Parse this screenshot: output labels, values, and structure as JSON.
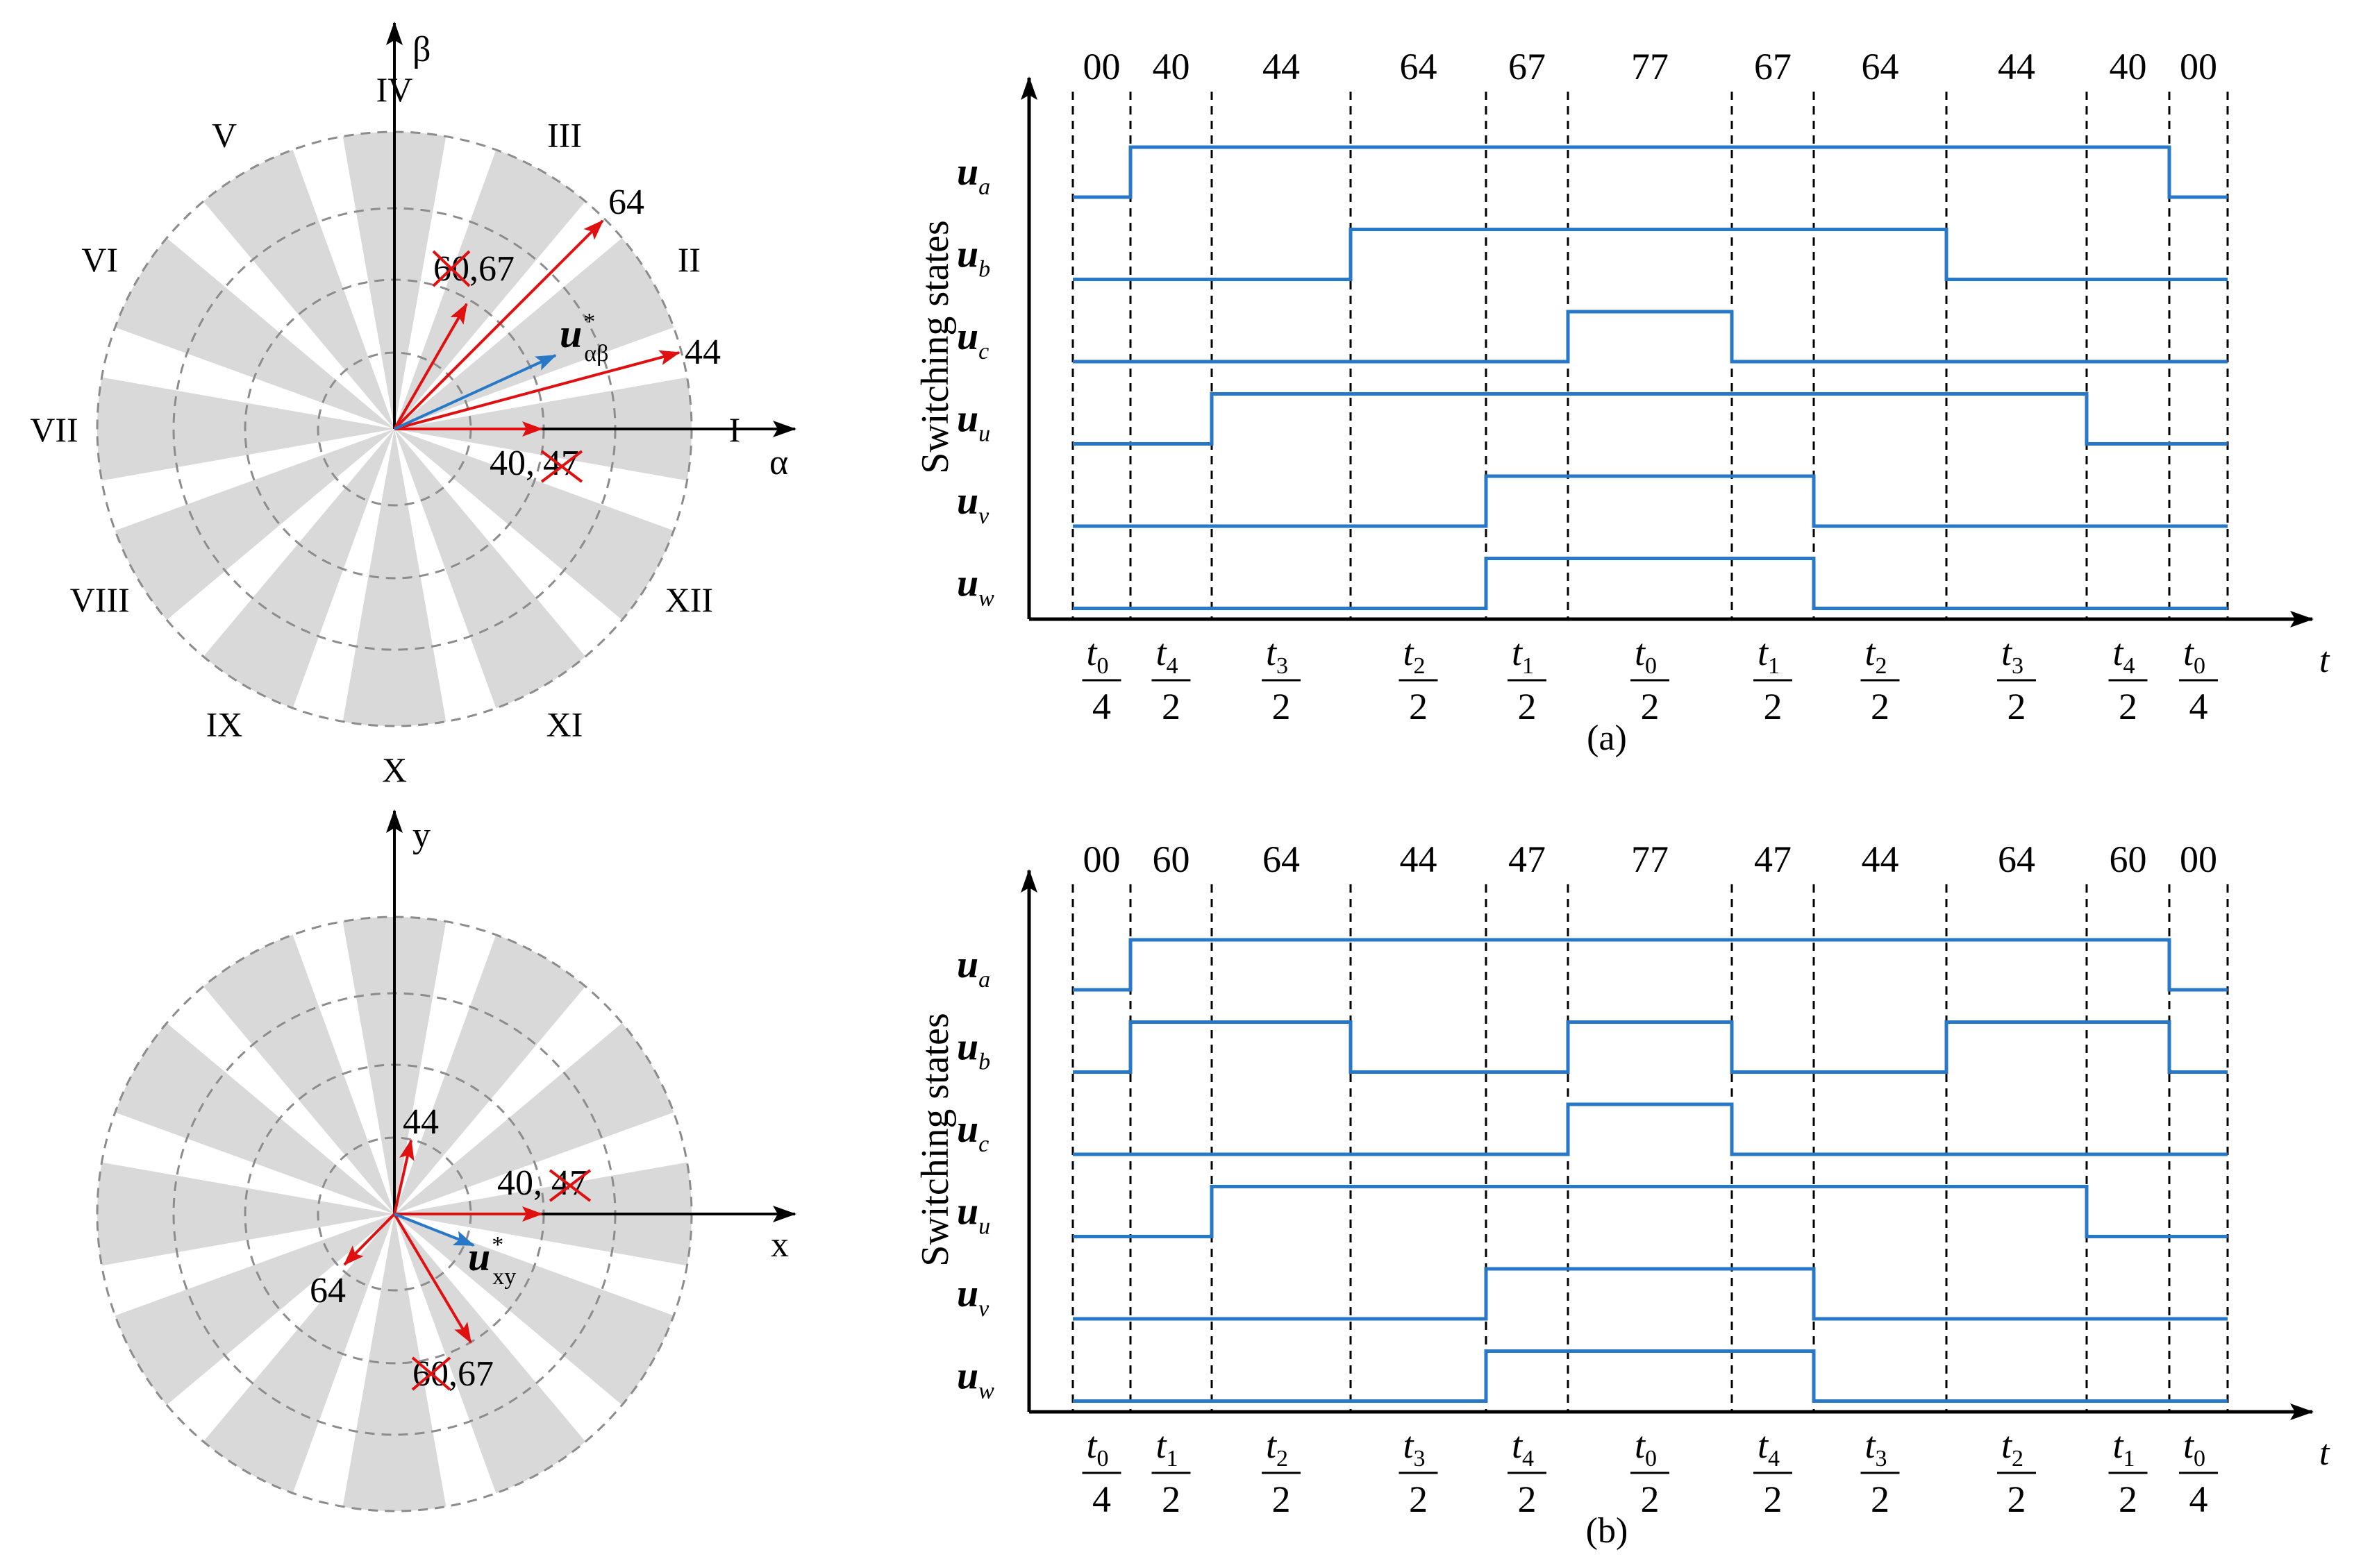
{
  "colors": {
    "blue": "#2878c8",
    "red": "#e01010",
    "gray_sector": "#d9d9d9",
    "dash_circle": "#8c8c8c",
    "black": "#000000"
  },
  "top_vector_diagram": {
    "axis_horizontal": "α",
    "axis_vertical": "β",
    "sectors": [
      "I",
      "II",
      "III",
      "IV",
      "V",
      "VI",
      "VII",
      "VIII",
      "IX",
      "X",
      "XI",
      "XII"
    ],
    "vector_labels": {
      "v64": "64",
      "v44": "44",
      "v6067_struck": "60",
      "v6067_rest": ",67",
      "v4047_first": "40,",
      "v4047_struck": "47"
    },
    "reference": {
      "main": "u",
      "sup": "*",
      "sub": "αβ"
    }
  },
  "bottom_vector_diagram": {
    "axis_horizontal": "x",
    "axis_vertical": "y",
    "vector_labels": {
      "v44": "44",
      "v64": "64",
      "v4047_first": "40,",
      "v4047_struck": "47",
      "v6067_struck": "60",
      "v6067_rest": ",67"
    },
    "reference": {
      "main": "u",
      "sup": "*",
      "sub": "xy"
    }
  },
  "timing_a": {
    "caption": "(a)",
    "ylabel": "Switching states",
    "xlabel": "t",
    "states": [
      "00",
      "40",
      "44",
      "64",
      "67",
      "77",
      "67",
      "64",
      "44",
      "40",
      "00"
    ],
    "rows": [
      {
        "main": "u",
        "sub": "a",
        "levels": [
          0,
          1,
          1,
          1,
          1,
          1,
          1,
          1,
          1,
          1,
          0
        ]
      },
      {
        "main": "u",
        "sub": "b",
        "levels": [
          0,
          0,
          0,
          1,
          1,
          1,
          1,
          1,
          0,
          0,
          0
        ]
      },
      {
        "main": "u",
        "sub": "c",
        "levels": [
          0,
          0,
          0,
          0,
          0,
          1,
          0,
          0,
          0,
          0,
          0
        ]
      },
      {
        "main": "u",
        "sub": "u",
        "levels": [
          0,
          0,
          1,
          1,
          1,
          1,
          1,
          1,
          1,
          0,
          0
        ]
      },
      {
        "main": "u",
        "sub": "v",
        "levels": [
          0,
          0,
          0,
          0,
          1,
          1,
          1,
          0,
          0,
          0,
          0
        ]
      },
      {
        "main": "u",
        "sub": "w",
        "levels": [
          0,
          0,
          0,
          0,
          1,
          1,
          1,
          0,
          0,
          0,
          0
        ]
      }
    ],
    "intervals": [
      {
        "num": "t",
        "sub": "0",
        "den": "4"
      },
      {
        "num": "t",
        "sub": "4",
        "den": "2"
      },
      {
        "num": "t",
        "sub": "3",
        "den": "2"
      },
      {
        "num": "t",
        "sub": "2",
        "den": "2"
      },
      {
        "num": "t",
        "sub": "1",
        "den": "2"
      },
      {
        "num": "t",
        "sub": "0",
        "den": "2"
      },
      {
        "num": "t",
        "sub": "1",
        "den": "2"
      },
      {
        "num": "t",
        "sub": "2",
        "den": "2"
      },
      {
        "num": "t",
        "sub": "3",
        "den": "2"
      },
      {
        "num": "t",
        "sub": "4",
        "den": "2"
      },
      {
        "num": "t",
        "sub": "0",
        "den": "4"
      }
    ]
  },
  "timing_b": {
    "caption": "(b)",
    "ylabel": "Switching states",
    "xlabel": "t",
    "states": [
      "00",
      "60",
      "64",
      "44",
      "47",
      "77",
      "47",
      "44",
      "64",
      "60",
      "00"
    ],
    "rows": [
      {
        "main": "u",
        "sub": "a",
        "levels": [
          0,
          1,
          1,
          1,
          1,
          1,
          1,
          1,
          1,
          1,
          0
        ]
      },
      {
        "main": "u",
        "sub": "b",
        "levels": [
          0,
          1,
          1,
          0,
          0,
          1,
          0,
          0,
          1,
          1,
          0
        ]
      },
      {
        "main": "u",
        "sub": "c",
        "levels": [
          0,
          0,
          0,
          0,
          0,
          1,
          0,
          0,
          0,
          0,
          0
        ]
      },
      {
        "main": "u",
        "sub": "u",
        "levels": [
          0,
          0,
          1,
          1,
          1,
          1,
          1,
          1,
          1,
          0,
          0
        ]
      },
      {
        "main": "u",
        "sub": "v",
        "levels": [
          0,
          0,
          0,
          0,
          1,
          1,
          1,
          0,
          0,
          0,
          0
        ]
      },
      {
        "main": "u",
        "sub": "w",
        "levels": [
          0,
          0,
          0,
          0,
          1,
          1,
          1,
          0,
          0,
          0,
          0
        ]
      }
    ],
    "intervals": [
      {
        "num": "t",
        "sub": "0",
        "den": "4"
      },
      {
        "num": "t",
        "sub": "1",
        "den": "2"
      },
      {
        "num": "t",
        "sub": "2",
        "den": "2"
      },
      {
        "num": "t",
        "sub": "3",
        "den": "2"
      },
      {
        "num": "t",
        "sub": "4",
        "den": "2"
      },
      {
        "num": "t",
        "sub": "0",
        "den": "2"
      },
      {
        "num": "t",
        "sub": "4",
        "den": "2"
      },
      {
        "num": "t",
        "sub": "3",
        "den": "2"
      },
      {
        "num": "t",
        "sub": "2",
        "den": "2"
      },
      {
        "num": "t",
        "sub": "1",
        "den": "2"
      },
      {
        "num": "t",
        "sub": "0",
        "den": "4"
      }
    ]
  }
}
